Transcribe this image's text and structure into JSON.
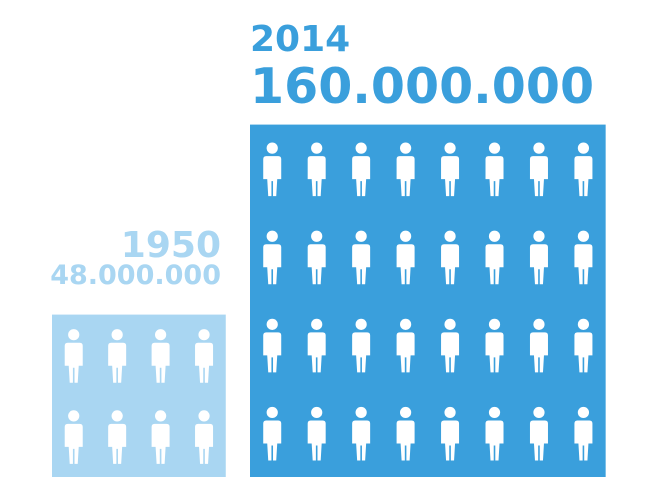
{
  "chart_data": {
    "type": "bar",
    "categories": [
      "1950",
      "2014"
    ],
    "values": [
      48000000,
      160000000
    ],
    "value_labels": [
      "48.000.000",
      "160.000.000"
    ],
    "title": "",
    "xlabel": "",
    "ylabel": "",
    "icons_per_block": [
      8,
      32
    ],
    "icon": "person-icon",
    "colors": {
      "1950": "#a9d6f2",
      "2014": "#3a9fdc",
      "icon": "#ffffff"
    }
  }
}
